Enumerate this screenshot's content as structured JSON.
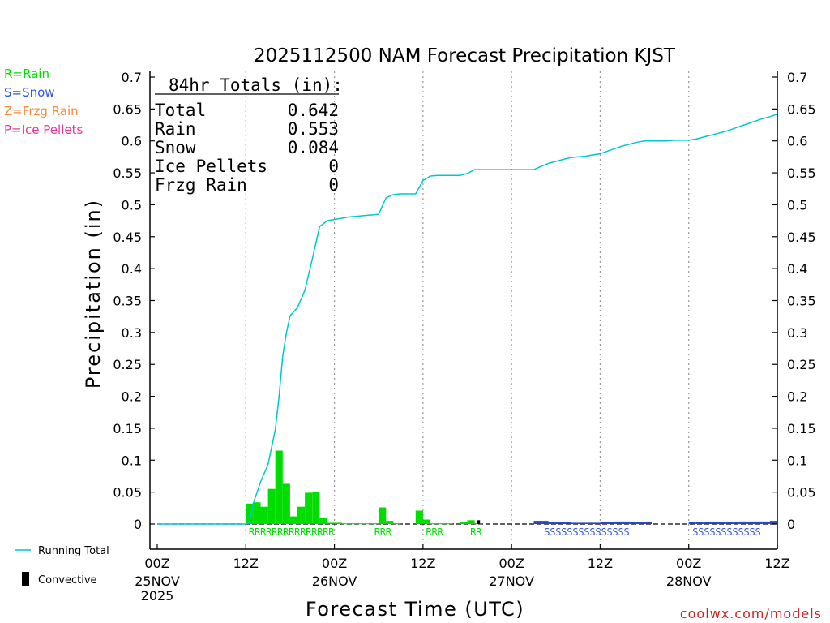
{
  "chart_data": {
    "type": "bar",
    "title": "2025112500 NAM Forecast Precipitation KJST",
    "ylabel": "Precipitation (in)",
    "xlabel": "Forecast Time (UTC)",
    "ylim": [
      -0.02,
      0.7
    ],
    "xlim_hours": [
      0,
      84
    ],
    "y_ticks": [
      0,
      0.05,
      0.1,
      0.15,
      0.2,
      0.25,
      0.3,
      0.35,
      0.4,
      0.45,
      0.5,
      0.55,
      0.6,
      0.65,
      0.7
    ],
    "y_tick_labels": [
      "0",
      "0.05",
      "0.1",
      "0.15",
      "0.2",
      "0.25",
      "0.3",
      "0.35",
      "0.4",
      "0.45",
      "0.5",
      "0.55",
      "0.6",
      "0.65",
      "0.7"
    ],
    "x_ticks": [
      {
        "hour": 0,
        "line1": "00Z",
        "line2": "25NOV",
        "line3": "2025"
      },
      {
        "hour": 12,
        "line1": "12Z",
        "line2": "",
        "line3": ""
      },
      {
        "hour": 24,
        "line1": "00Z",
        "line2": "26NOV",
        "line3": ""
      },
      {
        "hour": 36,
        "line1": "12Z",
        "line2": "",
        "line3": ""
      },
      {
        "hour": 48,
        "line1": "00Z",
        "line2": "27NOV",
        "line3": ""
      },
      {
        "hour": 60,
        "line1": "12Z",
        "line2": "",
        "line3": ""
      },
      {
        "hour": 72,
        "line1": "00Z",
        "line2": "28NOV",
        "line3": ""
      },
      {
        "hour": 84,
        "line1": "12Z",
        "line2": "",
        "line3": ""
      }
    ],
    "dotted_gridline_hours": [
      12,
      24,
      36,
      48,
      60,
      72
    ],
    "ptype_legend": [
      {
        "label": "R=Rain",
        "color": "#00dd00"
      },
      {
        "label": "S=Snow",
        "color": "#3355dd"
      },
      {
        "label": "Z=Frzg Rain",
        "color": "#f08c3c"
      },
      {
        "label": "P=Ice Pellets",
        "color": "#ee3399"
      }
    ],
    "totals_box": {
      "heading": "84hr Totals (in):",
      "rows": [
        {
          "label": "Total",
          "value": "0.642"
        },
        {
          "label": "Rain",
          "value": "0.553"
        },
        {
          "label": "Snow",
          "value": "0.084"
        },
        {
          "label": "Ice Pellets",
          "value": "0"
        },
        {
          "label": "Frzg Rain",
          "value": "0"
        }
      ]
    },
    "series": [
      {
        "name": "Rain",
        "kind": "bar",
        "color": "#00dd00",
        "bar_width_hours": 1,
        "hours": [
          13,
          14,
          15,
          16,
          17,
          18,
          19,
          20,
          21,
          22,
          23,
          24,
          25,
          26,
          27,
          28,
          29,
          30,
          31,
          32,
          33,
          34,
          35,
          36,
          37,
          38,
          39,
          40,
          41,
          42,
          43,
          44
        ],
        "values": [
          0.032,
          0.034,
          0.027,
          0.055,
          0.115,
          0.063,
          0.012,
          0.027,
          0.049,
          0.051,
          0.009,
          0.002,
          0.002,
          0.001,
          0.001,
          0.001,
          0.001,
          0.001,
          0.026,
          0.005,
          0.001,
          0,
          0,
          0.021,
          0.007,
          0.001,
          0.001,
          0.001,
          0,
          0.003,
          0.006,
          0.001
        ]
      },
      {
        "name": "Snow",
        "kind": "bar",
        "color": "#2a44cc",
        "bar_width_hours": 1,
        "hours": [
          52,
          53,
          54,
          55,
          56,
          57,
          58,
          59,
          60,
          61,
          62,
          63,
          64,
          65,
          66,
          67,
          73,
          74,
          75,
          76,
          77,
          78,
          79,
          80,
          81,
          82,
          83,
          84
        ],
        "values": [
          0.005,
          0.005,
          0.003,
          0.003,
          0.003,
          0.002,
          0.002,
          0.002,
          0.002,
          0.003,
          0.003,
          0.004,
          0.004,
          0.003,
          0.003,
          0.003,
          0.003,
          0.003,
          0.003,
          0.003,
          0.003,
          0.003,
          0.003,
          0.004,
          0.004,
          0.004,
          0.004,
          0.005
        ]
      },
      {
        "name": "Convective",
        "kind": "bar",
        "color": "#000000",
        "bar_width_hours": 0.45,
        "hours": [
          43.5
        ],
        "values": [
          0.006
        ]
      },
      {
        "name": "Running Total",
        "kind": "line",
        "color": "#00c8c8",
        "x": [
          0,
          12,
          12.5,
          13,
          14,
          15,
          16,
          16.5,
          17,
          17.5,
          18,
          19,
          20,
          21,
          22,
          22.5,
          23,
          24,
          25,
          26,
          27,
          28,
          29,
          30,
          31,
          32,
          33,
          34,
          35,
          36,
          37,
          38,
          39,
          40,
          41,
          42,
          43,
          44,
          45,
          46,
          47,
          48,
          49,
          50,
          51,
          52,
          53,
          54,
          55,
          56,
          57,
          58,
          59,
          60,
          61,
          62,
          63,
          64,
          65,
          66,
          67,
          68,
          69,
          70,
          71,
          72,
          73,
          74,
          75,
          76,
          77,
          78,
          79,
          80,
          81,
          82,
          83,
          84
        ],
        "y": [
          0,
          0,
          0.003,
          0.032,
          0.066,
          0.093,
          0.148,
          0.2,
          0.263,
          0.3,
          0.326,
          0.339,
          0.366,
          0.415,
          0.466,
          0.47,
          0.475,
          0.477,
          0.479,
          0.481,
          0.482,
          0.483,
          0.484,
          0.485,
          0.511,
          0.516,
          0.517,
          0.517,
          0.517,
          0.538,
          0.545,
          0.546,
          0.546,
          0.546,
          0.546,
          0.549,
          0.555,
          0.555,
          0.555,
          0.555,
          0.555,
          0.555,
          0.555,
          0.555,
          0.555,
          0.56,
          0.565,
          0.568,
          0.571,
          0.574,
          0.575,
          0.576,
          0.578,
          0.58,
          0.584,
          0.588,
          0.592,
          0.595,
          0.598,
          0.6,
          0.6,
          0.6,
          0.6,
          0.601,
          0.601,
          0.601,
          0.603,
          0.606,
          0.609,
          0.612,
          0.615,
          0.619,
          0.623,
          0.627,
          0.631,
          0.635,
          0.638,
          0.642
        ]
      }
    ],
    "ptype_strips": [
      {
        "text": "RRRRRRRRRRRRRRR",
        "color": "#00dd00",
        "start_hour": 12.4
      },
      {
        "text": "RRR",
        "color": "#00dd00",
        "start_hour": 29.4
      },
      {
        "text": "RRR",
        "color": "#00dd00",
        "start_hour": 36.4
      },
      {
        "text": "RR",
        "color": "#00dd00",
        "start_hour": 42.4
      },
      {
        "text": "SSSSSSSSSSSSSSS",
        "color": "#3355dd",
        "start_hour": 52.4
      },
      {
        "text": "SSSSSSSSSSSS",
        "color": "#3355dd",
        "start_hour": 72.5
      }
    ],
    "bottom_legend": [
      {
        "label": "Running Total",
        "kind": "line",
        "color": "#00c8c8"
      },
      {
        "label": "Convective",
        "kind": "bar",
        "color": "#000000"
      }
    ],
    "credit": "coolwx.com/models",
    "credit_color": "#cc2222"
  }
}
